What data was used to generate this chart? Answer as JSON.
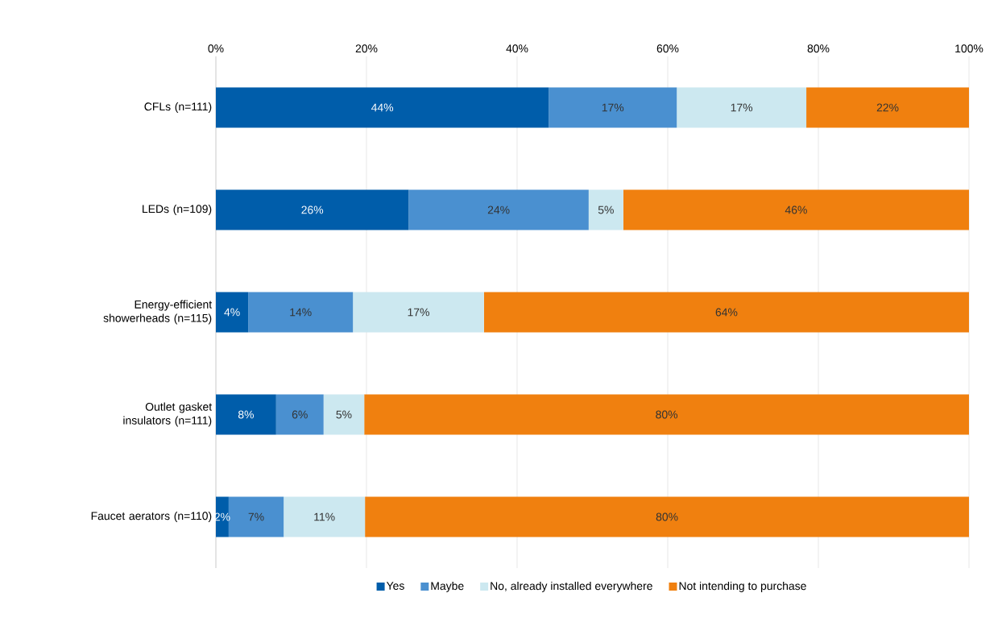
{
  "chart_data": {
    "type": "bar",
    "orientation": "horizontal",
    "stacked": true,
    "categories": [
      "CFLs (n=111)",
      "LEDs (n=109)",
      "Energy-efficient showerheads (n=115)",
      "Outlet gasket insulators (n=111)",
      "Faucet aerators (n=110)"
    ],
    "series": [
      {
        "name": "Yes",
        "color": "#005daa",
        "values": [
          44.2,
          25.6,
          4.3,
          8.0,
          1.7
        ],
        "value_labels": [
          "44%",
          "26%",
          "4%",
          "8%",
          "2%"
        ]
      },
      {
        "name": "Maybe",
        "color": "#4a90d0",
        "values": [
          17.0,
          23.9,
          13.9,
          6.3,
          7.3
        ],
        "value_labels": [
          "17%",
          "24%",
          "14%",
          "6%",
          "7%"
        ]
      },
      {
        "name": "No, already installed everywhere",
        "color": "#cce8f0",
        "values": [
          17.2,
          4.6,
          17.4,
          5.4,
          10.8
        ],
        "value_labels": [
          "17%",
          "5%",
          "17%",
          "5%",
          "11%"
        ]
      },
      {
        "name": "Not intending to purchase",
        "color": "#f0800f",
        "values": [
          21.6,
          45.9,
          64.4,
          80.3,
          80.2
        ],
        "value_labels": [
          "22%",
          "46%",
          "64%",
          "80%",
          "80%"
        ]
      }
    ],
    "xlim": [
      0,
      100
    ],
    "xticks": [
      {
        "value": 0,
        "label": "0%"
      },
      {
        "value": 20,
        "label": "20%"
      },
      {
        "value": 40,
        "label": "40%"
      },
      {
        "value": 60,
        "label": "60%"
      },
      {
        "value": 80,
        "label": "80%"
      },
      {
        "value": 100,
        "label": "100%"
      }
    ],
    "grid": "x",
    "legend": "bottom"
  }
}
